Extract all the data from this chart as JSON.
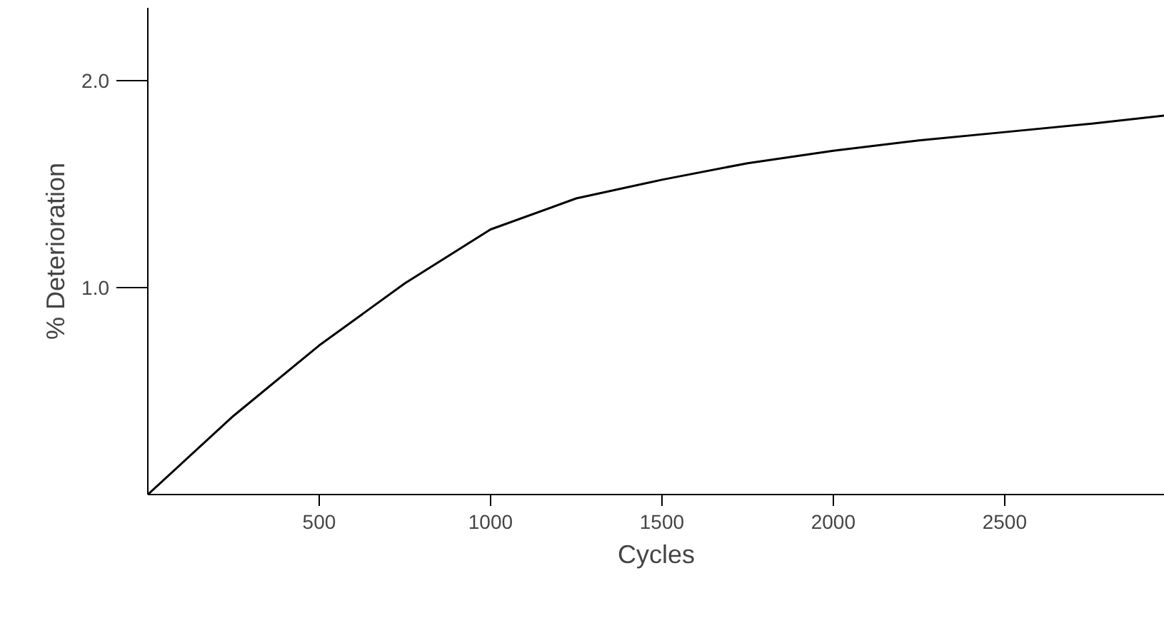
{
  "chart_data": {
    "type": "line",
    "xlabel": "Cycles",
    "ylabel": "% Deterioration",
    "x": [
      0,
      250,
      500,
      750,
      1000,
      1250,
      1500,
      1750,
      2000,
      2250,
      2500,
      2750,
      2967
    ],
    "series": [
      {
        "color": "#000000",
        "values": [
          0,
          0.38,
          0.72,
          1.02,
          1.28,
          1.43,
          1.52,
          1.6,
          1.66,
          1.71,
          1.75,
          1.79,
          1.83
        ]
      }
    ],
    "xlim": [
      0,
      2967
    ],
    "ylim": [
      0,
      2.35
    ],
    "xticks": [
      500,
      1000,
      1500,
      2000,
      2500
    ],
    "yticks": [
      {
        "value": 1,
        "label": "1.0"
      },
      {
        "value": 2,
        "label": "2.0"
      }
    ],
    "grid": false,
    "marker": "none",
    "line_style": "solid"
  }
}
